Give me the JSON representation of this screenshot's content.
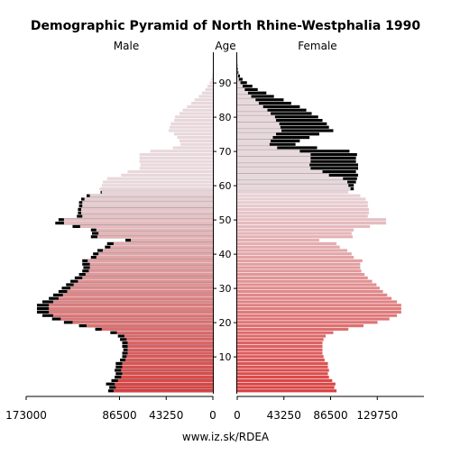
{
  "chart_data": {
    "type": "bar",
    "orientation": "horizontal-pyramid",
    "title": "Demographic Pyramid of North Rhine-Westphalia 1990",
    "left_label": "Male",
    "center_label": "Age",
    "right_label": "Female",
    "footer": "www.iz.sk/RDEA",
    "age_ticks": [
      10,
      20,
      30,
      40,
      50,
      60,
      70,
      80,
      90
    ],
    "male_xticks": [
      "173000",
      "86500",
      "43250",
      "0"
    ],
    "male_xtick_values": [
      173000,
      86500,
      43250,
      0
    ],
    "female_xticks": [
      "0",
      "43250",
      "86500",
      "129750"
    ],
    "female_xtick_values": [
      0,
      43250,
      86500,
      129750
    ],
    "xlim_male": [
      0,
      173000
    ],
    "xlim_female": [
      0,
      173000
    ],
    "ages": [
      0,
      1,
      2,
      3,
      4,
      5,
      6,
      7,
      8,
      9,
      10,
      11,
      12,
      13,
      14,
      15,
      16,
      17,
      18,
      19,
      20,
      21,
      22,
      23,
      24,
      25,
      26,
      27,
      28,
      29,
      30,
      31,
      32,
      33,
      34,
      35,
      36,
      37,
      38,
      39,
      40,
      41,
      42,
      43,
      44,
      45,
      46,
      47,
      48,
      49,
      50,
      51,
      52,
      53,
      54,
      55,
      56,
      57,
      58,
      59,
      60,
      61,
      62,
      63,
      64,
      65,
      66,
      67,
      68,
      69,
      70,
      71,
      72,
      73,
      74,
      75,
      76,
      77,
      78,
      79,
      80,
      81,
      82,
      83,
      84,
      85,
      86,
      87,
      88,
      89,
      90,
      91,
      92,
      93,
      94,
      95,
      96,
      97,
      98,
      99
    ],
    "male_values": [
      97000,
      96000,
      99000,
      94000,
      91000,
      90000,
      91000,
      90000,
      90000,
      86000,
      84000,
      84000,
      83000,
      84000,
      84000,
      86000,
      88000,
      95000,
      109000,
      124000,
      138000,
      149000,
      158000,
      163000,
      163000,
      163000,
      158000,
      152000,
      148000,
      143000,
      140000,
      136000,
      132000,
      128000,
      124000,
      121000,
      120000,
      121000,
      121000,
      113000,
      111000,
      107000,
      100000,
      98000,
      81000,
      113000,
      112000,
      113000,
      130000,
      146000,
      143000,
      126000,
      125000,
      125000,
      124000,
      124000,
      122000,
      117000,
      104000,
      105000,
      103000,
      102000,
      98000,
      85000,
      79000,
      68000,
      67000,
      68000,
      68000,
      68000,
      58000,
      37000,
      30000,
      31000,
      33000,
      36000,
      41000,
      40000,
      39000,
      36000,
      35000,
      31000,
      28000,
      24000,
      20000,
      17000,
      13000,
      10000,
      7000,
      5000,
      3000,
      1500,
      700,
      300,
      100,
      50,
      20,
      10,
      5,
      0
    ],
    "female_values": [
      92000,
      90000,
      91000,
      88000,
      85000,
      84000,
      85000,
      84000,
      84000,
      81000,
      80000,
      79000,
      79000,
      79000,
      79000,
      80000,
      82000,
      89000,
      103000,
      117000,
      130000,
      141000,
      148000,
      152000,
      152000,
      152000,
      148000,
      143000,
      139000,
      135000,
      132000,
      129000,
      125000,
      121000,
      118000,
      115000,
      114000,
      114000,
      116000,
      108000,
      106000,
      102000,
      95000,
      92000,
      76000,
      107000,
      106000,
      108000,
      123000,
      138000,
      138000,
      121000,
      122000,
      122000,
      121000,
      121000,
      119000,
      114000,
      103000,
      108000,
      108000,
      110000,
      111000,
      112000,
      110000,
      112000,
      112000,
      110000,
      110000,
      111000,
      104000,
      74000,
      54000,
      58000,
      67000,
      76000,
      89000,
      85000,
      83000,
      79000,
      75000,
      69000,
      64000,
      58000,
      50000,
      43000,
      34000,
      27000,
      19000,
      14000,
      9000,
      5000,
      2500,
      1100,
      500,
      200,
      80,
      30,
      10,
      0
    ],
    "male_excess": [
      97000,
      96000,
      99000,
      94000,
      91000,
      90000,
      91000,
      90000,
      90000,
      86000,
      84000,
      84000,
      83000,
      84000,
      84000,
      86000,
      88000,
      95000,
      109000,
      124000,
      138000,
      149000,
      158000,
      163000,
      163000,
      163000,
      158000,
      152000,
      148000,
      143000,
      140000,
      136000,
      132000,
      128000,
      124000,
      121000,
      120000,
      121000,
      121000,
      113000,
      111000,
      107000,
      100000,
      98000,
      81000,
      113000,
      112000,
      113000,
      130000,
      146000,
      143000,
      126000,
      125000,
      125000,
      124000,
      124000,
      122000,
      117000,
      104000,
      105000,
      103000,
      102000,
      98000,
      85000,
      79000,
      68000,
      67000,
      68000,
      68000,
      68000,
      58000,
      37000,
      30000,
      31000,
      33000,
      36000,
      41000,
      40000,
      39000,
      36000,
      35000,
      31000,
      28000,
      24000,
      20000,
      17000,
      13000,
      10000,
      7000,
      5000,
      3000,
      1500,
      700,
      300,
      100,
      50,
      20,
      10,
      5,
      0
    ],
    "colors": {
      "young": "#e04848",
      "old": "#e8d8dc",
      "excess": "#000000",
      "bar_stroke": "#ffffff"
    }
  }
}
